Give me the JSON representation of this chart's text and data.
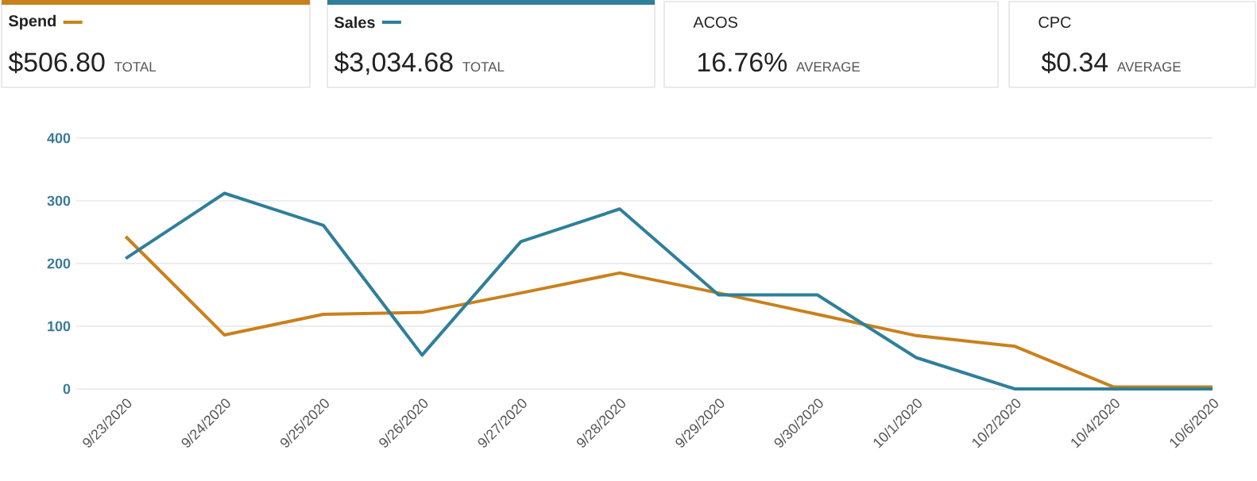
{
  "chart_data": {
    "type": "line",
    "categories": [
      "9/23/2020",
      "9/24/2020",
      "9/25/2020",
      "9/26/2020",
      "9/27/2020",
      "9/28/2020",
      "9/29/2020",
      "9/30/2020",
      "10/1/2020",
      "10/2/2020",
      "10/4/2020",
      "10/6/2020"
    ],
    "series": [
      {
        "name": "Spend",
        "color": "#c9811c",
        "values": [
          243,
          86,
          119,
          122,
          153,
          185,
          153,
          119,
          85,
          68,
          3,
          3
        ]
      },
      {
        "name": "Sales",
        "color": "#2f7f9a",
        "values": [
          208,
          312,
          261,
          54,
          235,
          287,
          150,
          150,
          50,
          0,
          0,
          0
        ]
      }
    ],
    "ylim": [
      0,
      400
    ],
    "yticks": [
      0,
      100,
      200,
      300,
      400
    ],
    "grid": "y",
    "legend": "top",
    "marker": "none",
    "line_style": "solid",
    "annotations": [
      "$506.80",
      "TOTAL",
      "$3,034.68",
      "TOTAL",
      "ACOS",
      "16.76%",
      "AVERAGE",
      "CPC",
      "$0.34",
      "AVERAGE"
    ]
  }
}
